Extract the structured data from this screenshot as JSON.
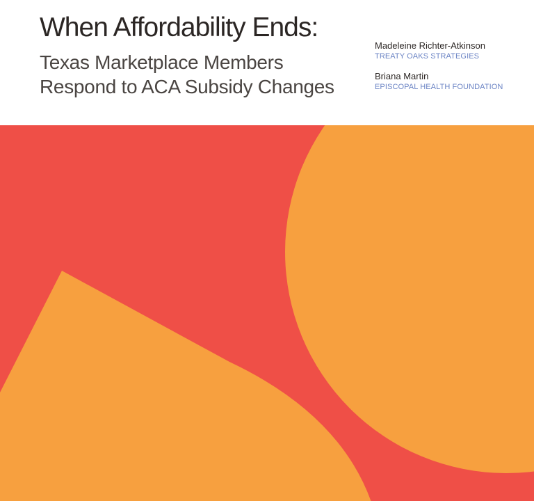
{
  "cover": {
    "title": "When Affordability Ends:",
    "subtitle_line1": "Texas Marketplace Members",
    "subtitle_line2": "Respond to ACA Subsidy Changes"
  },
  "authors": [
    {
      "name": "Madeleine Richter-Atkinson",
      "organization": "TREATY OAKS STRATEGIES"
    },
    {
      "name": "Briana Martin",
      "organization": "EPISCOPAL HEALTH FOUNDATION"
    }
  ],
  "colors": {
    "text_dark": "#2b2624",
    "subtitle_gray": "#4a4542",
    "org_blue": "#6a83c4",
    "background_red": "#ef4f47",
    "shape_orange": "#f7a03f",
    "paper": "#ffffff"
  },
  "artwork": {
    "shapes": [
      "large-orange-circle",
      "rounded-orange-triangle"
    ]
  }
}
